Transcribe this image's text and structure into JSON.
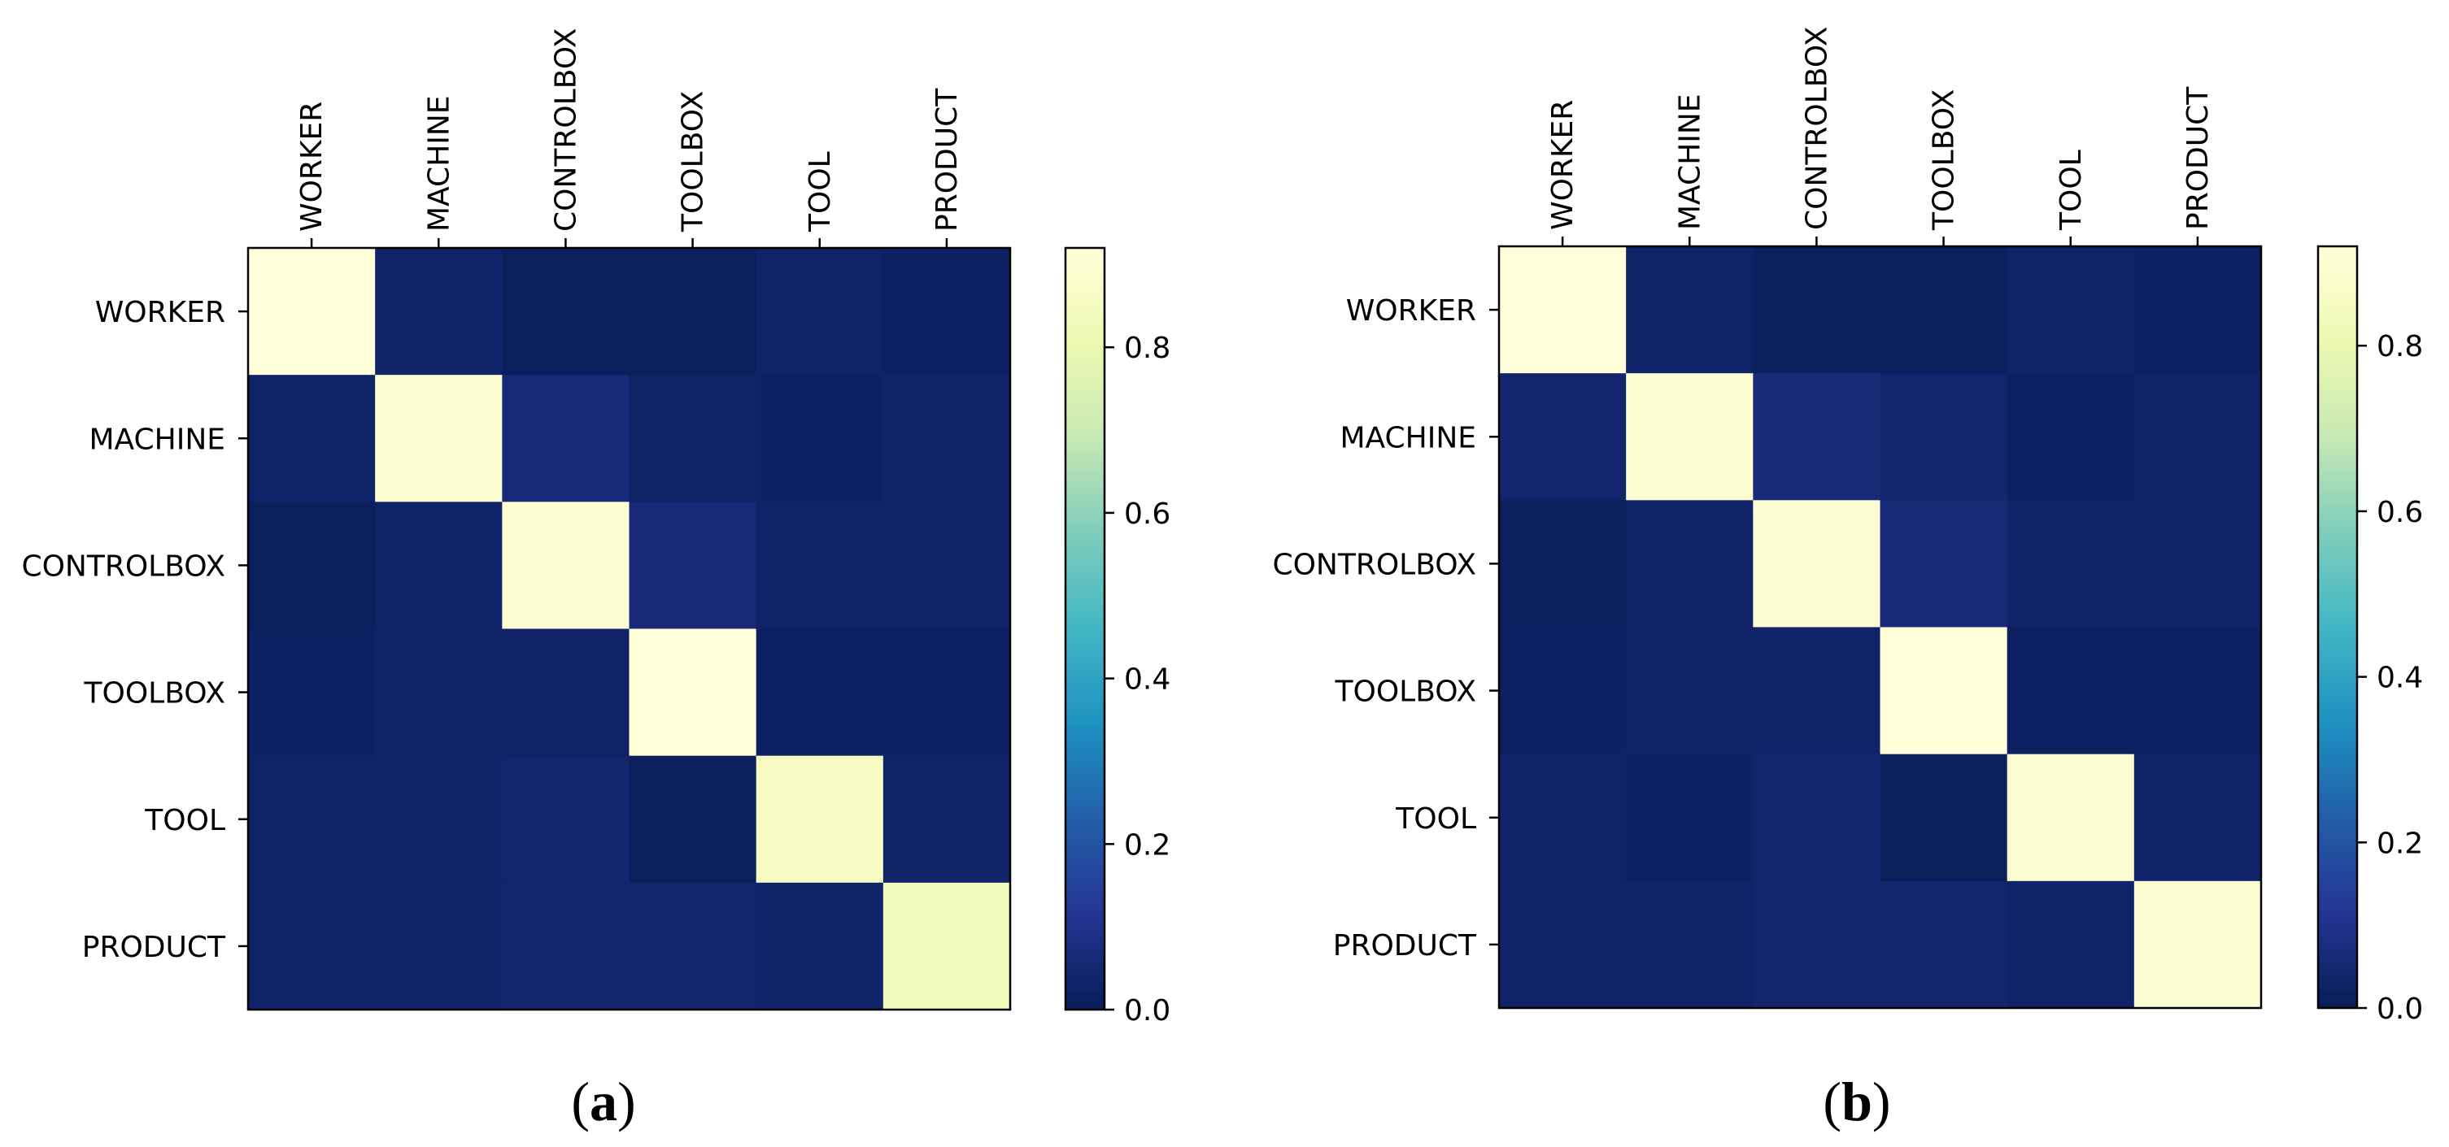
{
  "figure": {
    "panel_labels": [
      "(a)",
      "(b)"
    ]
  },
  "chart_data": [
    {
      "type": "heatmap",
      "panel": "(a)",
      "x_categories": [
        "WORKER",
        "MACHINE",
        "CONTROLBOX",
        "TOOLBOX",
        "TOOL",
        "PRODUCT"
      ],
      "y_categories": [
        "WORKER",
        "MACHINE",
        "CONTROLBOX",
        "TOOLBOX",
        "TOOL",
        "PRODUCT"
      ],
      "matrix": [
        [
          0.92,
          0.03,
          0.01,
          0.01,
          0.03,
          0.02
        ],
        [
          0.03,
          0.9,
          0.06,
          0.03,
          0.02,
          0.03
        ],
        [
          0.01,
          0.03,
          0.9,
          0.06,
          0.03,
          0.03
        ],
        [
          0.02,
          0.03,
          0.03,
          0.92,
          0.02,
          0.02
        ],
        [
          0.03,
          0.03,
          0.04,
          0.01,
          0.86,
          0.03
        ],
        [
          0.03,
          0.03,
          0.04,
          0.04,
          0.03,
          0.83
        ]
      ],
      "colormap": "YlGnBu",
      "colorbar": {
        "range": [
          0.0,
          0.92
        ],
        "ticks": [
          "0.0",
          "0.2",
          "0.4",
          "0.6",
          "0.8"
        ]
      },
      "x_tick_position": "top",
      "grid": false
    },
    {
      "type": "heatmap",
      "panel": "(b)",
      "x_categories": [
        "WORKER",
        "MACHINE",
        "CONTROLBOX",
        "TOOLBOX",
        "TOOL",
        "PRODUCT"
      ],
      "y_categories": [
        "WORKER",
        "MACHINE",
        "CONTROLBOX",
        "TOOLBOX",
        "TOOL",
        "PRODUCT"
      ],
      "matrix": [
        [
          0.92,
          0.03,
          0.01,
          0.01,
          0.03,
          0.02
        ],
        [
          0.04,
          0.9,
          0.06,
          0.04,
          0.02,
          0.03
        ],
        [
          0.01,
          0.03,
          0.91,
          0.06,
          0.03,
          0.03
        ],
        [
          0.02,
          0.03,
          0.03,
          0.92,
          0.02,
          0.02
        ],
        [
          0.03,
          0.02,
          0.04,
          0.01,
          0.89,
          0.03
        ],
        [
          0.03,
          0.03,
          0.04,
          0.04,
          0.03,
          0.9
        ]
      ],
      "colormap": "YlGnBu",
      "colorbar": {
        "range": [
          0.0,
          0.92
        ],
        "ticks": [
          "0.0",
          "0.2",
          "0.4",
          "0.6",
          "0.8"
        ]
      },
      "x_tick_position": "top",
      "grid": false
    }
  ],
  "colors": {
    "colormap_stops": [
      "#ffffd9",
      "#edf8b1",
      "#c7e9b4",
      "#7fcdbb",
      "#41b6c4",
      "#1d91c0",
      "#225ea8",
      "#253494",
      "#081d58"
    ],
    "axis": "#000000",
    "background": "#ffffff"
  }
}
